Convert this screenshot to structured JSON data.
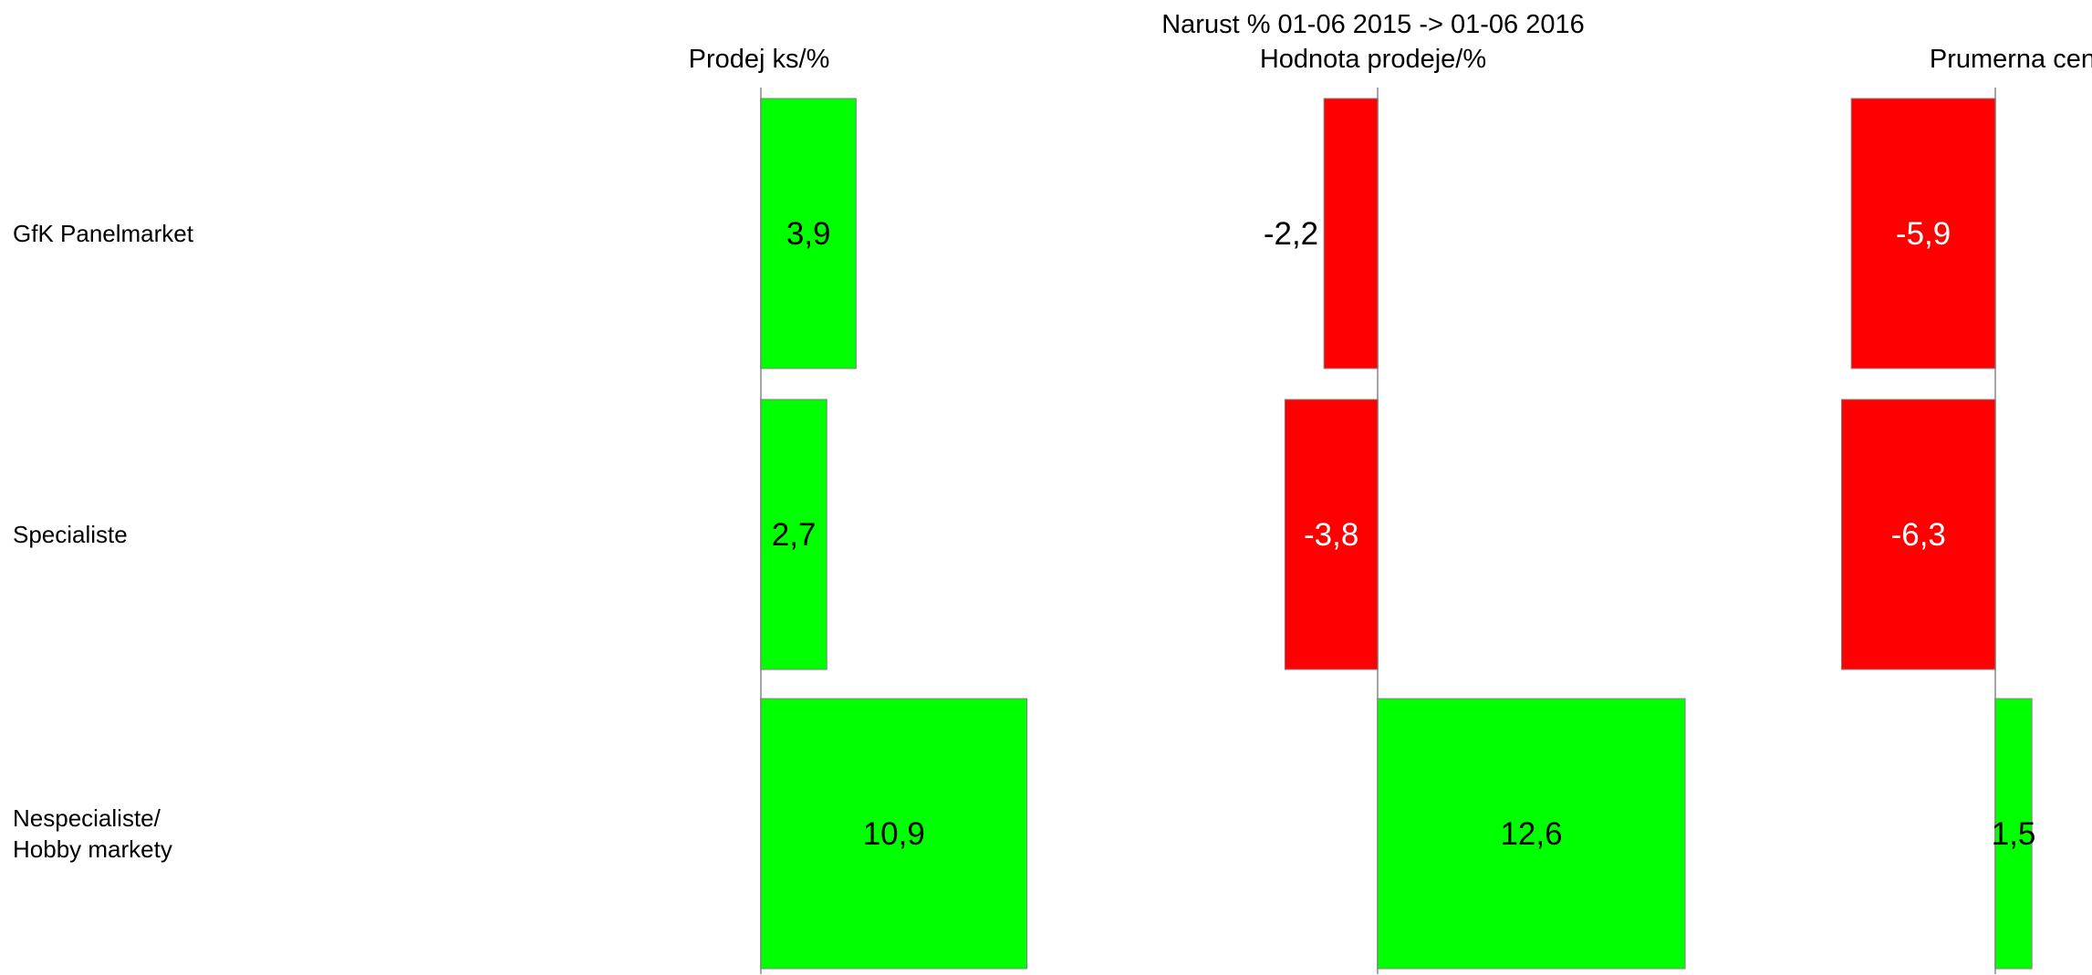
{
  "chart_data": {
    "type": "bar",
    "orientation": "horizontal",
    "title": "Narust % 01-06 2015 -> 01-06 2016",
    "categories": [
      [
        "GfK Panelmarket"
      ],
      [
        "Specialiste"
      ],
      [
        "Nespecialiste/",
        "Hobby markety"
      ]
    ],
    "series": [
      {
        "name": "Prodej ks/%",
        "values": [
          3.9,
          2.7,
          10.9
        ],
        "labels": [
          "3,9",
          "2,7",
          "10,9"
        ]
      },
      {
        "name": "Hodnota prodeje/%",
        "values": [
          -2.2,
          -3.8,
          12.6
        ],
        "labels": [
          "-2,2",
          "-3,8",
          "12,6"
        ]
      },
      {
        "name": "Prumerna cena",
        "values": [
          -5.9,
          -6.3,
          1.5
        ],
        "labels": [
          "-5,9",
          "-6,3",
          "1,5"
        ]
      }
    ],
    "colors": {
      "positive": "#00ff00",
      "negative": "#ff0000",
      "axis": "#a6a6a6"
    },
    "grid": false,
    "legend": "none"
  }
}
